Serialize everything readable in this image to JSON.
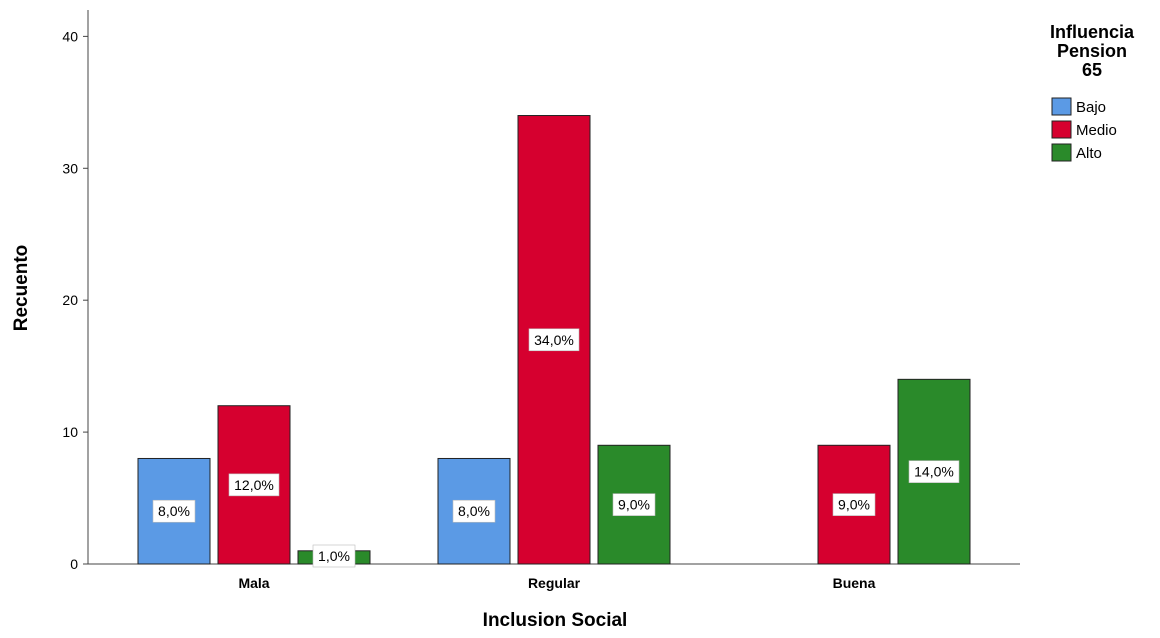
{
  "chart_data": {
    "type": "bar",
    "xlabel": "Inclusion Social",
    "ylabel": "Recuento",
    "ylim": [
      0,
      42
    ],
    "yticks": [
      0,
      10,
      20,
      30,
      40
    ],
    "categories": [
      "Mala",
      "Regular",
      "Buena"
    ],
    "legend_title_lines": [
      "Influencia",
      "Pension",
      "65"
    ],
    "legend_position": "top-right",
    "grid": false,
    "series": [
      {
        "name": "Bajo",
        "color": "#5b9ae5",
        "values": [
          8,
          8,
          0
        ],
        "labels": [
          "8,0%",
          "8,0%",
          ""
        ]
      },
      {
        "name": "Medio",
        "color": "#d6002f",
        "values": [
          12,
          34,
          9
        ],
        "labels": [
          "12,0%",
          "34,0%",
          "9,0%"
        ]
      },
      {
        "name": "Alto",
        "color": "#2a8a2a",
        "values": [
          1,
          9,
          14
        ],
        "labels": [
          "1,0%",
          "9,0%",
          "14,0%"
        ]
      }
    ]
  }
}
